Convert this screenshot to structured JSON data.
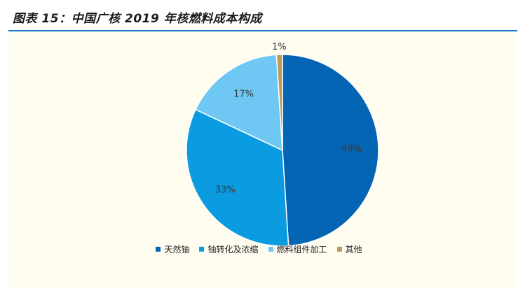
{
  "header": {
    "title": "图表 15：中国广核 2019 年核燃料成本构成"
  },
  "chart_data": {
    "type": "pie",
    "title": "",
    "categories": [
      "天然铀",
      "铀转化及浓缩",
      "燃料组件加工",
      "其他"
    ],
    "values": [
      49,
      33,
      17,
      1
    ],
    "labels": [
      "49%",
      "33%",
      "17%",
      "1%"
    ],
    "colors": [
      "#0565b5",
      "#0a9be0",
      "#6fc7f3",
      "#b99a5f"
    ],
    "legend": "bottom"
  }
}
